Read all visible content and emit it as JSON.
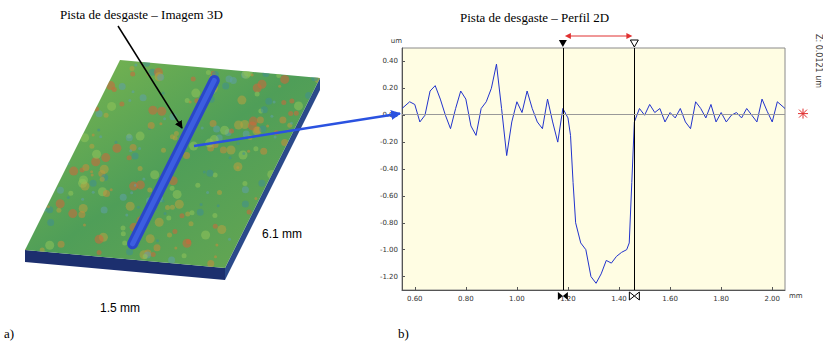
{
  "panel_a": {
    "label": "a)",
    "title": "Pista de desgaste – Imagem 3D",
    "length": "6.1 mm",
    "width": "1.5 mm"
  },
  "chart_data": {
    "type": "line",
    "panel_label": "b)",
    "title": "Pista de desgaste – Perfil 2D",
    "x_label": "mm",
    "y_label": "um",
    "x": [
      0.55,
      0.58,
      0.6,
      0.62,
      0.64,
      0.66,
      0.68,
      0.7,
      0.72,
      0.74,
      0.76,
      0.78,
      0.8,
      0.82,
      0.84,
      0.86,
      0.88,
      0.9,
      0.92,
      0.94,
      0.96,
      0.98,
      1.0,
      1.02,
      1.04,
      1.06,
      1.08,
      1.1,
      1.12,
      1.14,
      1.16,
      1.18,
      1.2,
      1.21,
      1.22,
      1.23,
      1.25,
      1.27,
      1.29,
      1.31,
      1.33,
      1.35,
      1.37,
      1.39,
      1.41,
      1.43,
      1.44,
      1.45,
      1.46,
      1.48,
      1.5,
      1.52,
      1.54,
      1.56,
      1.58,
      1.6,
      1.62,
      1.64,
      1.66,
      1.68,
      1.7,
      1.72,
      1.74,
      1.76,
      1.78,
      1.8,
      1.82,
      1.84,
      1.86,
      1.88,
      1.9,
      1.92,
      1.94,
      1.96,
      1.98,
      2.0,
      2.02,
      2.05
    ],
    "values": [
      0.05,
      0.1,
      0.08,
      -0.05,
      0.0,
      0.18,
      0.22,
      0.12,
      0.0,
      -0.1,
      0.05,
      0.18,
      0.12,
      -0.08,
      -0.15,
      0.05,
      0.1,
      0.2,
      0.38,
      0.05,
      -0.3,
      -0.05,
      0.1,
      0.02,
      0.18,
      0.05,
      -0.05,
      -0.1,
      0.12,
      -0.05,
      -0.2,
      0.05,
      -0.02,
      -0.15,
      -0.5,
      -0.8,
      -0.95,
      -1.0,
      -1.2,
      -1.25,
      -1.18,
      -1.08,
      -1.1,
      -1.05,
      -1.02,
      -1.0,
      -0.95,
      -0.5,
      -0.05,
      0.05,
      0.0,
      0.08,
      0.02,
      0.05,
      -0.05,
      0.02,
      -0.02,
      0.05,
      -0.05,
      -0.1,
      0.1,
      0.05,
      -0.02,
      0.08,
      -0.05,
      0.02,
      -0.05,
      0.0,
      0.02,
      -0.02,
      0.05,
      0.0,
      -0.05,
      0.12,
      0.03,
      -0.05,
      0.1,
      0.05
    ],
    "color": "#2233cc",
    "xlim": [
      0.55,
      2.05
    ],
    "xticks": [
      {
        "value": 0.6,
        "label": "0.60"
      },
      {
        "value": 0.8,
        "label": "0.80"
      },
      {
        "value": 1.0,
        "label": "1.00"
      },
      {
        "value": 1.2,
        "label": "1.20"
      },
      {
        "value": 1.4,
        "label": "1.40"
      },
      {
        "value": 1.6,
        "label": "1.60"
      },
      {
        "value": 1.8,
        "label": "1.80"
      },
      {
        "value": 2.0,
        "label": "2.00"
      }
    ],
    "ylim": [
      -1.3,
      0.5
    ],
    "yticks": [
      {
        "value": 0.4,
        "label": "0.40"
      },
      {
        "value": 0.2,
        "label": "0.20"
      },
      {
        "value": 0,
        "label": "0.00"
      },
      {
        "value": -0.2,
        "label": "-0.20"
      },
      {
        "value": -0.4,
        "label": "-0.40"
      },
      {
        "value": -0.6,
        "label": "-0.60"
      },
      {
        "value": -0.8,
        "label": "-0.80"
      },
      {
        "value": -1.0,
        "label": "-1.00"
      },
      {
        "value": -1.2,
        "label": "-1.20"
      }
    ],
    "grid": false,
    "cursors": [
      1.18,
      1.46
    ],
    "reference_line": 0.0121,
    "annotation": "Z: 0.0121 um"
  }
}
